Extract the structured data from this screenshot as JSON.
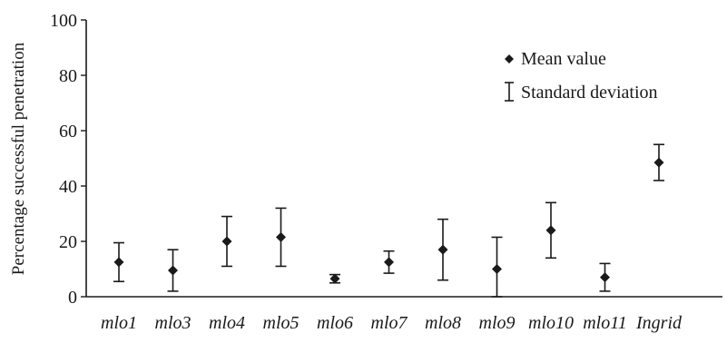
{
  "chart_data": {
    "type": "scatter",
    "ylabel": "Percentage successful penetration",
    "xlabel": "",
    "ylim": [
      0,
      100
    ],
    "yticks": [
      "0",
      "20",
      "40",
      "60",
      "80",
      "100"
    ],
    "categories": [
      "mlo1",
      "mlo3",
      "mlo4",
      "mlo5",
      "mlo6",
      "mlo7",
      "mlo8",
      "mlo9",
      "mlo10",
      "mlo11",
      "Ingrid"
    ],
    "series": [
      {
        "values": [
          12.5,
          9.5,
          20,
          21.5,
          6.5,
          12.5,
          17,
          10,
          24,
          7,
          48.5
        ],
        "std": [
          7,
          7.5,
          9,
          10.5,
          1.5,
          4,
          11,
          11.5,
          10,
          5,
          6.5
        ]
      }
    ],
    "legend": {
      "position": "top-right",
      "mean_label": "Mean value",
      "std_label": "Standard deviation"
    },
    "grid": false,
    "colors": {
      "ink": "#1a1a1a",
      "background": "#ffffff"
    }
  }
}
